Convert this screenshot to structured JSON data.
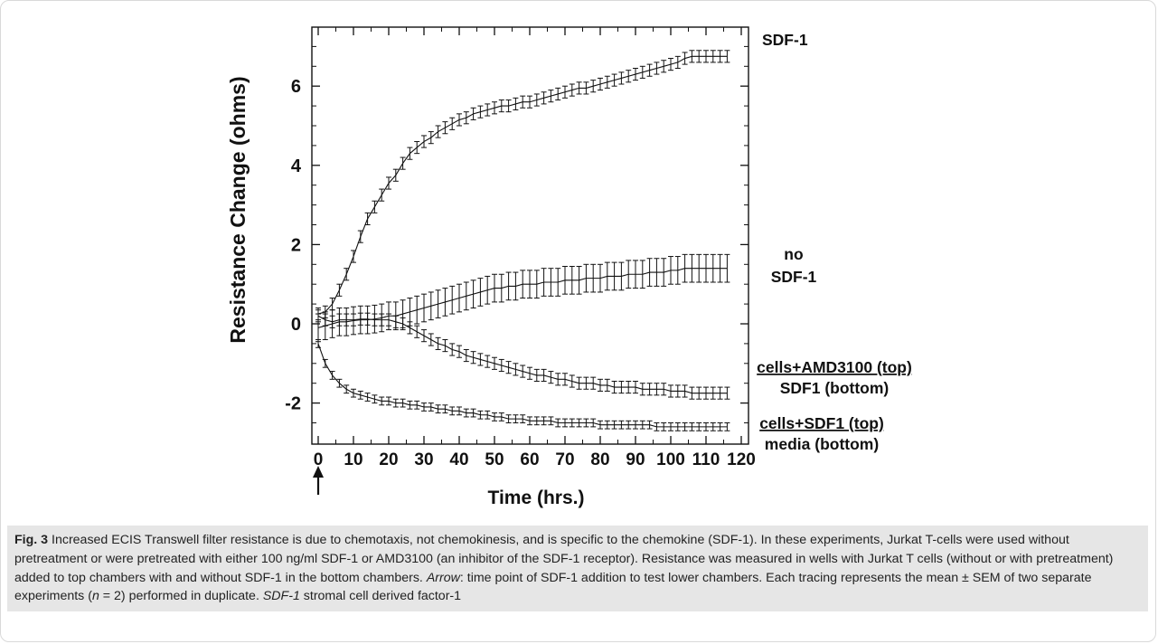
{
  "chart_data": {
    "type": "line",
    "xlabel": "Time (hrs.)",
    "ylabel": "Resistance Change (ohms)",
    "xlim": [
      0,
      120
    ],
    "ylim": [
      -3,
      7.5
    ],
    "x_ticks": [
      0,
      10,
      20,
      30,
      40,
      50,
      60,
      70,
      80,
      90,
      100,
      110,
      120
    ],
    "y_ticks": [
      -2,
      0,
      2,
      4,
      6
    ],
    "arrow_at_x": 0,
    "error_bars": true,
    "series": [
      {
        "name": "SDF-1",
        "x": [
          0,
          2,
          4,
          6,
          8,
          10,
          12,
          14,
          16,
          18,
          20,
          22,
          24,
          26,
          28,
          30,
          32,
          34,
          36,
          38,
          40,
          42,
          44,
          46,
          48,
          50,
          52,
          54,
          56,
          58,
          60,
          62,
          64,
          66,
          68,
          70,
          72,
          74,
          76,
          78,
          80,
          82,
          84,
          86,
          88,
          90,
          92,
          94,
          96,
          98,
          100,
          102,
          104,
          106,
          108,
          110,
          112,
          114,
          116
        ],
        "y": [
          0.25,
          0.3,
          0.5,
          0.85,
          1.25,
          1.7,
          2.2,
          2.65,
          2.95,
          3.25,
          3.55,
          3.75,
          4.05,
          4.3,
          4.45,
          4.6,
          4.7,
          4.85,
          4.95,
          5.05,
          5.15,
          5.2,
          5.3,
          5.35,
          5.4,
          5.45,
          5.5,
          5.5,
          5.55,
          5.6,
          5.6,
          5.65,
          5.7,
          5.75,
          5.8,
          5.85,
          5.9,
          5.95,
          5.95,
          6.0,
          6.05,
          6.1,
          6.15,
          6.2,
          6.25,
          6.3,
          6.35,
          6.4,
          6.45,
          6.5,
          6.55,
          6.6,
          6.7,
          6.75,
          6.75,
          6.75,
          6.75,
          6.75,
          6.75
        ],
        "err": 0.15
      },
      {
        "name": "no SDF-1",
        "x": [
          0,
          2,
          4,
          6,
          8,
          10,
          12,
          14,
          16,
          18,
          20,
          22,
          24,
          26,
          28,
          30,
          32,
          34,
          36,
          38,
          40,
          42,
          44,
          46,
          48,
          50,
          52,
          54,
          56,
          58,
          60,
          62,
          64,
          66,
          68,
          70,
          72,
          74,
          76,
          78,
          80,
          82,
          84,
          86,
          88,
          90,
          92,
          94,
          96,
          98,
          100,
          102,
          104,
          106,
          108,
          110,
          112,
          114,
          116
        ],
        "y": [
          -0.1,
          -0.05,
          0.0,
          0.05,
          0.05,
          0.08,
          0.1,
          0.1,
          0.12,
          0.15,
          0.2,
          0.2,
          0.25,
          0.3,
          0.35,
          0.4,
          0.45,
          0.5,
          0.55,
          0.6,
          0.65,
          0.7,
          0.75,
          0.8,
          0.85,
          0.9,
          0.9,
          0.95,
          0.95,
          1.0,
          1.0,
          1.0,
          1.05,
          1.05,
          1.05,
          1.1,
          1.1,
          1.1,
          1.15,
          1.15,
          1.15,
          1.2,
          1.2,
          1.2,
          1.25,
          1.25,
          1.25,
          1.3,
          1.3,
          1.3,
          1.35,
          1.35,
          1.4,
          1.4,
          1.4,
          1.4,
          1.4,
          1.4,
          1.4
        ],
        "err": 0.35
      },
      {
        "name": "cells+AMD3100 (top) / SDF1 (bottom)",
        "x": [
          0,
          2,
          4,
          6,
          8,
          10,
          12,
          14,
          16,
          18,
          20,
          22,
          24,
          26,
          28,
          30,
          32,
          34,
          36,
          38,
          40,
          42,
          44,
          46,
          48,
          50,
          52,
          54,
          56,
          58,
          60,
          62,
          64,
          66,
          68,
          70,
          72,
          74,
          76,
          78,
          80,
          82,
          84,
          86,
          88,
          90,
          92,
          94,
          96,
          98,
          100,
          102,
          104,
          106,
          108,
          110,
          112,
          114,
          116
        ],
        "y": [
          0.2,
          0.1,
          0.05,
          0.1,
          0.1,
          0.1,
          0.12,
          0.12,
          0.1,
          0.1,
          0.1,
          0.05,
          0.0,
          -0.1,
          -0.2,
          -0.3,
          -0.4,
          -0.5,
          -0.55,
          -0.65,
          -0.7,
          -0.8,
          -0.85,
          -0.9,
          -0.95,
          -1.0,
          -1.05,
          -1.1,
          -1.15,
          -1.2,
          -1.25,
          -1.3,
          -1.3,
          -1.35,
          -1.4,
          -1.4,
          -1.45,
          -1.5,
          -1.5,
          -1.5,
          -1.55,
          -1.55,
          -1.6,
          -1.6,
          -1.6,
          -1.6,
          -1.65,
          -1.65,
          -1.65,
          -1.65,
          -1.7,
          -1.7,
          -1.7,
          -1.75,
          -1.75,
          -1.75,
          -1.75,
          -1.75,
          -1.75
        ],
        "err": 0.15
      },
      {
        "name": "cells+SDF1 (top) / media (bottom)",
        "x": [
          0,
          2,
          4,
          6,
          8,
          10,
          12,
          14,
          16,
          18,
          20,
          22,
          24,
          26,
          28,
          30,
          32,
          34,
          36,
          38,
          40,
          42,
          44,
          46,
          48,
          50,
          52,
          54,
          56,
          58,
          60,
          62,
          64,
          66,
          68,
          70,
          72,
          74,
          76,
          78,
          80,
          82,
          84,
          86,
          88,
          90,
          92,
          94,
          96,
          98,
          100,
          102,
          104,
          106,
          108,
          110,
          112,
          114,
          116
        ],
        "y": [
          -0.5,
          -1.0,
          -1.3,
          -1.5,
          -1.65,
          -1.75,
          -1.8,
          -1.85,
          -1.9,
          -1.95,
          -1.95,
          -2.0,
          -2.0,
          -2.05,
          -2.05,
          -2.1,
          -2.1,
          -2.15,
          -2.15,
          -2.2,
          -2.2,
          -2.25,
          -2.25,
          -2.3,
          -2.3,
          -2.35,
          -2.35,
          -2.4,
          -2.4,
          -2.4,
          -2.45,
          -2.45,
          -2.45,
          -2.45,
          -2.5,
          -2.5,
          -2.5,
          -2.5,
          -2.5,
          -2.5,
          -2.55,
          -2.55,
          -2.55,
          -2.55,
          -2.55,
          -2.55,
          -2.55,
          -2.55,
          -2.6,
          -2.6,
          -2.6,
          -2.6,
          -2.6,
          -2.6,
          -2.6,
          -2.6,
          -2.6,
          -2.6,
          -2.6
        ],
        "err": 0.1
      }
    ],
    "series_labels": [
      {
        "lines": [
          "SDF-1"
        ],
        "underline": [
          false
        ]
      },
      {
        "lines": [
          "no",
          "SDF-1"
        ],
        "underline": [
          false,
          false
        ]
      },
      {
        "lines": [
          "cells+AMD3100 (top)",
          "SDF1 (bottom)"
        ],
        "underline": [
          true,
          false
        ]
      },
      {
        "lines": [
          "cells+SDF1 (top)",
          "media (bottom)"
        ],
        "underline": [
          true,
          false
        ]
      }
    ]
  },
  "caption": {
    "figure_label": "Fig. 3",
    "text_main": "Increased ECIS Transwell filter resistance is due to chemotaxis, not chemokinesis, and is specific to the chemokine (SDF-1). In these experiments, Jurkat T-cells were used without pretreatment or were pretreated with either 100 ng/ml SDF-1 or AMD3100 (an inhibitor of the SDF-1 receptor). Resistance was measured in wells with Jurkat T cells (without or with pretreatment) added to top chambers with and without SDF-1 in the bottom chambers.",
    "arrow_term": "Arrow",
    "arrow_text": ": time point of SDF-1 addition to test lower chambers. Each tracing represents the mean ± SEM of two separate experiments (",
    "n_term": "n",
    "n_text": " = 2) performed in duplicate.",
    "abbr_term": "SDF-1",
    "abbr_text": " stromal cell derived factor-1"
  }
}
